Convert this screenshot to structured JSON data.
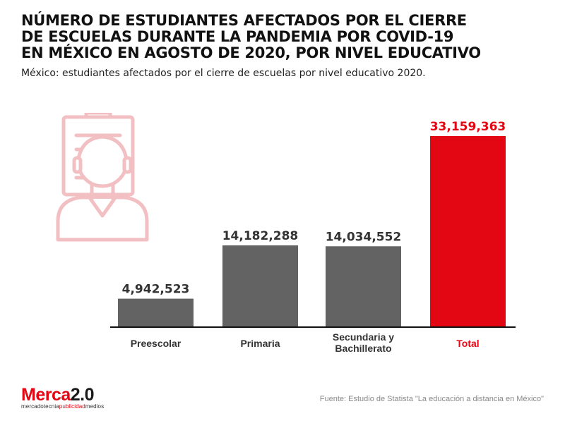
{
  "header": {
    "title_lines": [
      "NÚMERO DE ESTUDIANTES AFECTADOS POR EL CIERRE",
      "DE ESCUELAS DURANTE LA PANDEMIA POR COVID-19",
      "EN MÉXICO EN AGOSTO DE 2020, POR NIVEL EDUCATIVO"
    ],
    "subtitle": "México: estudiantes afectados por el cierre de escuelas por nivel educativo 2020."
  },
  "chart_data": {
    "type": "bar",
    "categories": [
      [
        "Preescolar"
      ],
      [
        "Primaria"
      ],
      [
        "Secundaria y",
        "Bachillerato"
      ],
      [
        "Total"
      ]
    ],
    "values": [
      4942523,
      14182288,
      14034552,
      33159363
    ],
    "value_labels": [
      "4,942,523",
      "14,182,288",
      "14,034,552",
      "33,159,363"
    ],
    "title": "",
    "xlabel": "",
    "ylabel": "",
    "ylim": [
      0,
      35000000
    ],
    "grid": false,
    "legend": "none"
  },
  "colors": {
    "bar": "#636363",
    "highlight_bar": "#e30613",
    "axis": "#111111",
    "label": "#333333",
    "highlight_label": "#e30613",
    "illustration": "#f2c0c3"
  },
  "illustration_icon": "teacher-at-board-icon",
  "footer": {
    "logo": {
      "brand_red": "Merca",
      "brand_black": "2.0",
      "tagline_start": "mercadotecnia",
      "tagline_mid": "publicidad",
      "tagline_end": "medios"
    },
    "source": "Fuente: Estudio de Statista \"La educación a distancia en México\""
  }
}
